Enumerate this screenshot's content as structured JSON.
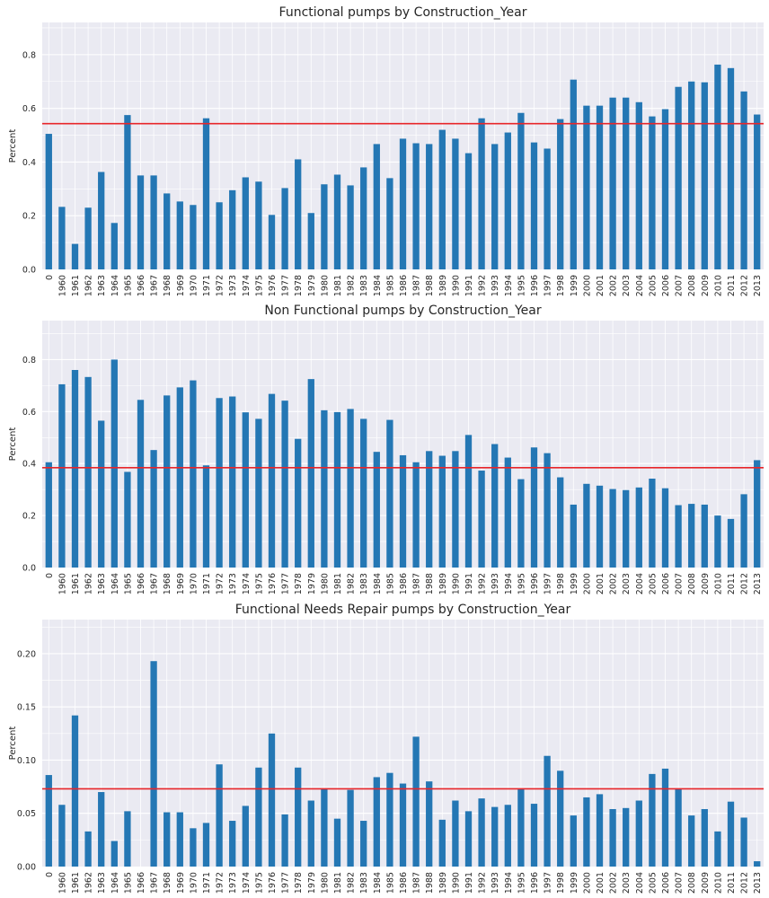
{
  "chart_data": [
    {
      "type": "bar",
      "title": "Functional pumps by Construction_Year",
      "xlabel": "",
      "ylabel": "Percent",
      "ylim": [
        0,
        0.92
      ],
      "yticks": [
        "0.0",
        "0.2",
        "0.4",
        "0.6",
        "0.8"
      ],
      "ytick_values": [
        0,
        0.2,
        0.4,
        0.6,
        0.8
      ],
      "mean_line": 0.543,
      "mean_line_color": "#e8262a",
      "bar_color": "#2477b4",
      "grid": true,
      "categories": [
        "0",
        "1960",
        "1961",
        "1962",
        "1963",
        "1964",
        "1965",
        "1966",
        "1967",
        "1968",
        "1969",
        "1970",
        "1971",
        "1972",
        "1973",
        "1974",
        "1975",
        "1976",
        "1977",
        "1978",
        "1979",
        "1980",
        "1981",
        "1982",
        "1983",
        "1984",
        "1985",
        "1986",
        "1987",
        "1988",
        "1989",
        "1990",
        "1991",
        "1992",
        "1993",
        "1994",
        "1995",
        "1996",
        "1997",
        "1998",
        "1999",
        "2000",
        "2001",
        "2002",
        "2003",
        "2004",
        "2005",
        "2006",
        "2007",
        "2008",
        "2009",
        "2010",
        "2011",
        "2012",
        "2013"
      ],
      "values": [
        0.505,
        0.233,
        0.095,
        0.23,
        0.363,
        0.173,
        0.575,
        0.35,
        0.35,
        0.283,
        0.253,
        0.24,
        0.563,
        0.25,
        0.295,
        0.343,
        0.327,
        0.203,
        0.303,
        0.41,
        0.21,
        0.317,
        0.353,
        0.313,
        0.38,
        0.467,
        0.34,
        0.487,
        0.47,
        0.467,
        0.52,
        0.487,
        0.433,
        0.563,
        0.467,
        0.51,
        0.583,
        0.473,
        0.45,
        0.56,
        0.707,
        0.61,
        0.61,
        0.64,
        0.64,
        0.623,
        0.57,
        0.597,
        0.68,
        0.7,
        0.697,
        0.763,
        0.75,
        0.663,
        0.577
      ]
    },
    {
      "type": "bar",
      "title": "Non Functional pumps by Construction_Year",
      "xlabel": "",
      "ylabel": "Percent",
      "ylim": [
        0,
        0.95
      ],
      "yticks": [
        "0.0",
        "0.2",
        "0.4",
        "0.6",
        "0.8"
      ],
      "ytick_values": [
        0,
        0.2,
        0.4,
        0.6,
        0.8
      ],
      "mean_line": 0.384,
      "mean_line_color": "#e8262a",
      "bar_color": "#2477b4",
      "grid": true,
      "categories": [
        "0",
        "1960",
        "1961",
        "1962",
        "1963",
        "1964",
        "1965",
        "1966",
        "1967",
        "1968",
        "1969",
        "1970",
        "1971",
        "1972",
        "1973",
        "1974",
        "1975",
        "1976",
        "1977",
        "1978",
        "1979",
        "1980",
        "1981",
        "1982",
        "1983",
        "1984",
        "1985",
        "1986",
        "1987",
        "1988",
        "1989",
        "1990",
        "1991",
        "1992",
        "1993",
        "1994",
        "1995",
        "1996",
        "1997",
        "1998",
        "1999",
        "2000",
        "2001",
        "2002",
        "2003",
        "2004",
        "2005",
        "2006",
        "2007",
        "2008",
        "2009",
        "2010",
        "2011",
        "2012",
        "2013"
      ],
      "values": [
        0.405,
        0.705,
        0.76,
        0.733,
        0.565,
        0.8,
        0.368,
        0.645,
        0.452,
        0.662,
        0.693,
        0.72,
        0.393,
        0.652,
        0.658,
        0.597,
        0.572,
        0.668,
        0.642,
        0.495,
        0.725,
        0.605,
        0.598,
        0.61,
        0.572,
        0.445,
        0.568,
        0.432,
        0.405,
        0.448,
        0.43,
        0.448,
        0.51,
        0.373,
        0.475,
        0.423,
        0.34,
        0.462,
        0.44,
        0.347,
        0.242,
        0.322,
        0.315,
        0.302,
        0.298,
        0.308,
        0.342,
        0.305,
        0.24,
        0.245,
        0.242,
        0.2,
        0.187,
        0.282,
        0.413
      ]
    },
    {
      "type": "bar",
      "title": "Functional Needs Repair pumps by Construction_Year",
      "xlabel": "",
      "ylabel": "Percent",
      "ylim": [
        0,
        0.232
      ],
      "yticks": [
        "0.00",
        "0.05",
        "0.10",
        "0.15",
        "0.20"
      ],
      "ytick_values": [
        0,
        0.05,
        0.1,
        0.15,
        0.2
      ],
      "mean_line": 0.073,
      "mean_line_color": "#e8262a",
      "bar_color": "#2477b4",
      "grid": true,
      "categories": [
        "0",
        "1960",
        "1961",
        "1962",
        "1963",
        "1964",
        "1965",
        "1966",
        "1967",
        "1968",
        "1969",
        "1970",
        "1971",
        "1972",
        "1973",
        "1974",
        "1975",
        "1976",
        "1977",
        "1978",
        "1979",
        "1980",
        "1981",
        "1982",
        "1983",
        "1984",
        "1985",
        "1986",
        "1987",
        "1988",
        "1989",
        "1990",
        "1991",
        "1992",
        "1993",
        "1994",
        "1995",
        "1996",
        "1997",
        "1998",
        "1999",
        "2000",
        "2001",
        "2002",
        "2003",
        "2004",
        "2005",
        "2006",
        "2007",
        "2008",
        "2009",
        "2010",
        "2011",
        "2012",
        "2013"
      ],
      "values": [
        0.086,
        0.058,
        0.142,
        0.033,
        0.07,
        0.024,
        0.052,
        0.0,
        0.193,
        0.051,
        0.051,
        0.036,
        0.041,
        0.096,
        0.043,
        0.057,
        0.093,
        0.125,
        0.049,
        0.093,
        0.062,
        0.073,
        0.045,
        0.072,
        0.043,
        0.084,
        0.088,
        0.078,
        0.122,
        0.08,
        0.044,
        0.062,
        0.052,
        0.064,
        0.056,
        0.058,
        0.073,
        0.059,
        0.104,
        0.09,
        0.048,
        0.065,
        0.068,
        0.054,
        0.055,
        0.062,
        0.087,
        0.092,
        0.073,
        0.048,
        0.054,
        0.033,
        0.061,
        0.046,
        0.005
      ]
    }
  ]
}
